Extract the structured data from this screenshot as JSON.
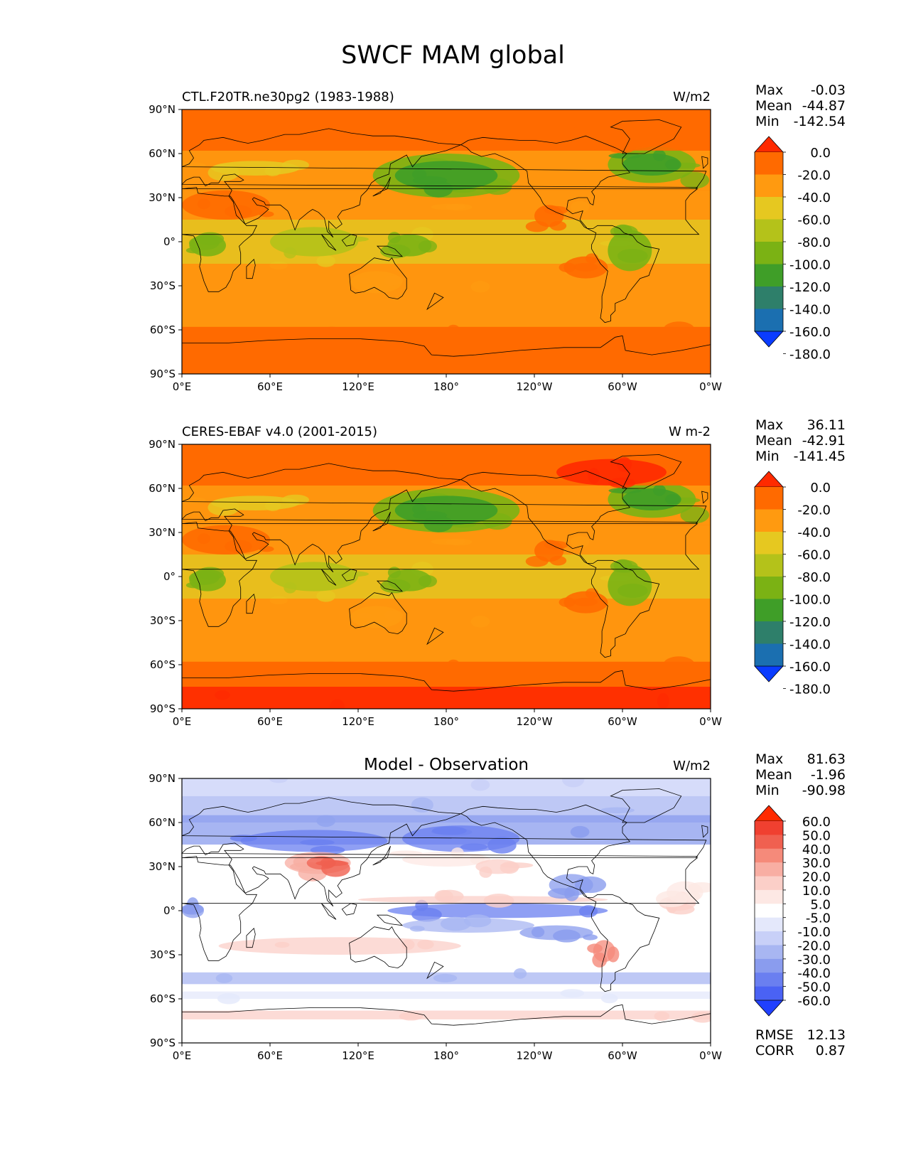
{
  "figure": {
    "title": "SWCF MAM global"
  },
  "chart_data": [
    {
      "type": "heatmap",
      "title": "CTL.F20TR.ne30pg2 (1983-1988)",
      "units": "W/m2",
      "x_ticks": [
        "0°E",
        "60°E",
        "120°E",
        "180°",
        "120°W",
        "60°W",
        "0°W"
      ],
      "y_ticks": [
        "90°N",
        "60°N",
        "30°N",
        "0°",
        "30°S",
        "60°S",
        "90°S"
      ],
      "xlim": [
        0,
        360
      ],
      "ylim": [
        -90,
        90
      ],
      "stats": [
        {
          "label": "Max",
          "value": "-0.03"
        },
        {
          "label": "Mean",
          "value": "-44.87"
        },
        {
          "label": "Min",
          "value": "-142.54"
        }
      ],
      "colorbar": {
        "labels": [
          "0.0",
          "-20.0",
          "-40.0",
          "-60.0",
          "-80.0",
          "-100.0",
          "-120.0",
          "-140.0",
          "-160.0",
          "-180.0"
        ],
        "colors": [
          "#ff2a00",
          "#ff6a00",
          "#ff9a10",
          "#e6c820",
          "#b4c21a",
          "#7bb214",
          "#3f9e28",
          "#2e7f6a",
          "#1b6fb0",
          "#0a3cff"
        ]
      }
    },
    {
      "type": "heatmap",
      "title": "CERES-EBAF v4.0 (2001-2015)",
      "units": "W m-2",
      "x_ticks": [
        "0°E",
        "60°E",
        "120°E",
        "180°",
        "120°W",
        "60°W",
        "0°W"
      ],
      "y_ticks": [
        "90°N",
        "60°N",
        "30°N",
        "0°",
        "30°S",
        "60°S",
        "90°S"
      ],
      "xlim": [
        0,
        360
      ],
      "ylim": [
        -90,
        90
      ],
      "stats": [
        {
          "label": "Max",
          "value": "36.11"
        },
        {
          "label": "Mean",
          "value": "-42.91"
        },
        {
          "label": "Min",
          "value": "-141.45"
        }
      ],
      "colorbar": {
        "labels": [
          "0.0",
          "-20.0",
          "-40.0",
          "-60.0",
          "-80.0",
          "-100.0",
          "-120.0",
          "-140.0",
          "-160.0",
          "-180.0"
        ],
        "colors": [
          "#ff2a00",
          "#ff6a00",
          "#ff9a10",
          "#e6c820",
          "#b4c21a",
          "#7bb214",
          "#3f9e28",
          "#2e7f6a",
          "#1b6fb0",
          "#0a3cff"
        ]
      }
    },
    {
      "type": "heatmap",
      "title": "Model - Observation",
      "units": "W/m2",
      "x_ticks": [
        "0°E",
        "60°E",
        "120°E",
        "180°",
        "120°W",
        "60°W",
        "0°W"
      ],
      "y_ticks": [
        "90°N",
        "60°N",
        "30°N",
        "0°",
        "30°S",
        "60°S",
        "90°S"
      ],
      "xlim": [
        0,
        360
      ],
      "ylim": [
        -90,
        90
      ],
      "stats": [
        {
          "label": "Max",
          "value": "81.63"
        },
        {
          "label": "Mean",
          "value": "-1.96"
        },
        {
          "label": "Min",
          "value": "-90.98"
        }
      ],
      "extra_stats": [
        {
          "label": "RMSE",
          "value": "12.13"
        },
        {
          "label": "CORR",
          "value": "0.87"
        }
      ],
      "colorbar": {
        "labels": [
          "60.0",
          "50.0",
          "40.0",
          "30.0",
          "20.0",
          "10.0",
          "5.0",
          "-5.0",
          "-10.0",
          "-20.0",
          "-30.0",
          "-40.0",
          "-50.0",
          "-60.0"
        ],
        "colors": [
          "#ff2a00",
          "#f04030",
          "#f06050",
          "#f58a7a",
          "#f8aea3",
          "#fbcfc8",
          "#fde8e4",
          "#ffffff",
          "#e4e8fb",
          "#c8d0f8",
          "#a8b6f2",
          "#8a9cee",
          "#6a7ff0",
          "#4a62f4",
          "#2040ff"
        ]
      }
    }
  ]
}
